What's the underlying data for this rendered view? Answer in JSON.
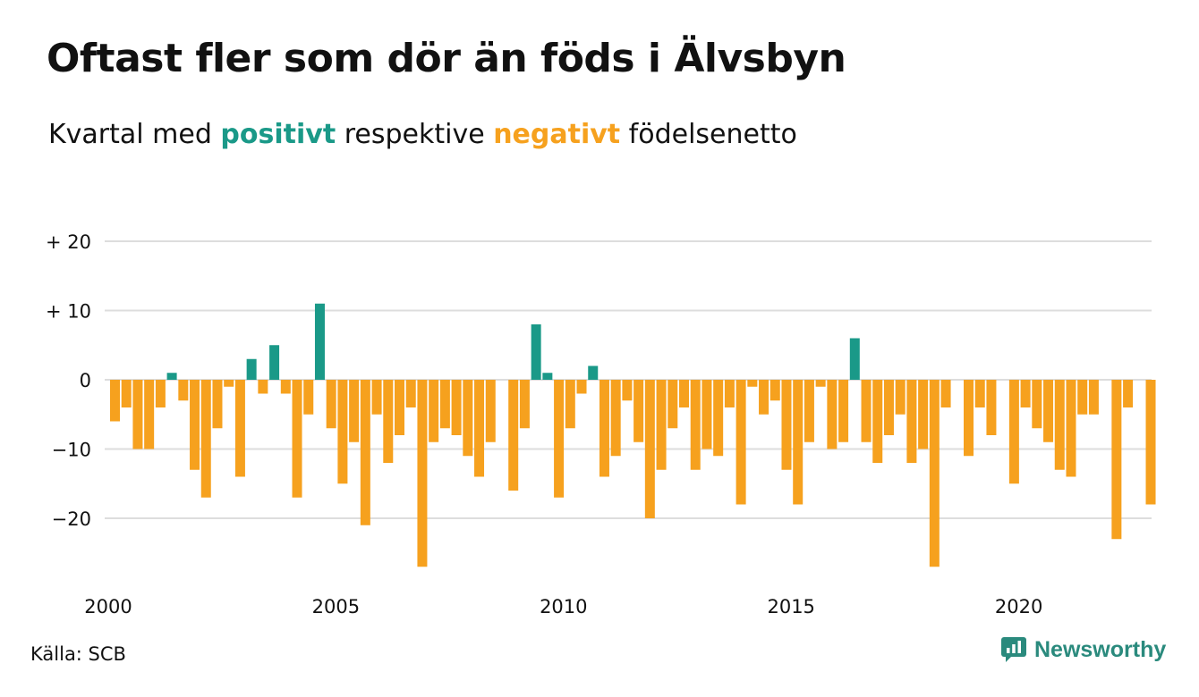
{
  "title": "Oftast fler som dör än föds i Älvsbyn",
  "subtitle": {
    "prefix": "Kvartal med ",
    "positive": "positivt",
    "middle": " respektive ",
    "negative": "negativt",
    "suffix": " födelsenetto"
  },
  "source": "Källa: SCB",
  "brand": "Newsworthy",
  "colors": {
    "positive": "#1a9988",
    "negative": "#f6a11e",
    "grid": "#dddddd",
    "brand": "#2a8a7d"
  },
  "chart_data": {
    "type": "bar",
    "title": "Oftast fler som dör än föds i Älvsbyn",
    "subtitle": "Kvartal med positivt respektive negativt födelsenetto",
    "x_start_quarter": "2000Q1",
    "values": [
      -6,
      -4,
      -10,
      -10,
      -4,
      1,
      -3,
      -13,
      -17,
      -7,
      -1,
      -14,
      3,
      -2,
      5,
      -2,
      -17,
      -5,
      11,
      -7,
      -15,
      -9,
      -21,
      -5,
      -12,
      -8,
      -4,
      -27,
      -9,
      -7,
      -8,
      -11,
      -14,
      -9,
      0,
      -16,
      -7,
      8,
      1,
      -17,
      -7,
      -2,
      2,
      -14,
      -11,
      -3,
      -9,
      -20,
      -13,
      -7,
      -4,
      -13,
      -10,
      -11,
      -4,
      -18,
      -1,
      -5,
      -3,
      -13,
      -18,
      -9,
      -1,
      -10,
      -9,
      6,
      -9,
      -12,
      -8,
      -5,
      -12,
      -10,
      -27,
      -4,
      0,
      -11,
      -4,
      -8,
      0,
      -15,
      -4,
      -7,
      -9,
      -13,
      -14,
      -5,
      -5,
      0,
      -23,
      -4,
      0,
      -18
    ],
    "ylim": [
      -29,
      22
    ],
    "y_ticks": [
      20,
      10,
      0,
      -10,
      -20
    ],
    "y_tick_labels": [
      "+ 20",
      "+ 10",
      "0",
      "−10",
      "−20"
    ],
    "x_ticks": [
      "2000",
      "2005",
      "2010",
      "2015",
      "2020"
    ],
    "grid": true
  }
}
